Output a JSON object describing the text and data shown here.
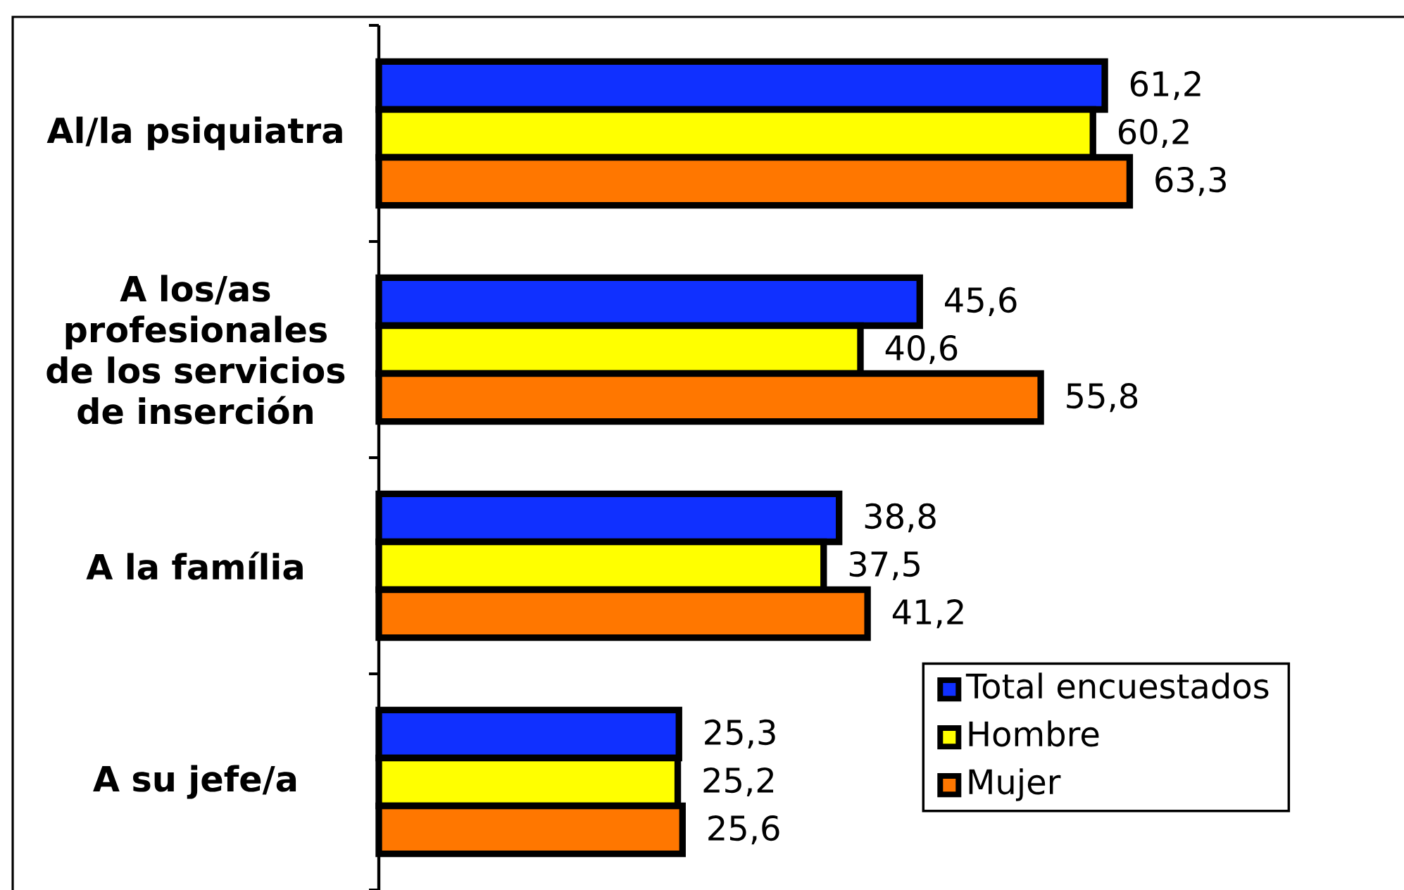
{
  "chart_data": {
    "type": "bar",
    "orientation": "horizontal",
    "categories": [
      "Al/la psiquiatra",
      "A los/as profesionales de los servicios de inserción",
      "A la família",
      "A su jefe/a"
    ],
    "series": [
      {
        "name": "Total encuestados",
        "color": "#1030ff",
        "values": [
          61.2,
          45.6,
          38.8,
          25.3
        ],
        "value_labels": [
          "61,2",
          "45,6",
          "38,8",
          "25,3"
        ]
      },
      {
        "name": "Hombre",
        "color": "#ffff00",
        "values": [
          60.2,
          40.6,
          37.5,
          25.2
        ],
        "value_labels": [
          "60,2",
          "40,6",
          "37,5",
          "25,2"
        ]
      },
      {
        "name": "Mujer",
        "color": "#ff7700",
        "values": [
          63.3,
          55.8,
          41.2,
          25.6
        ],
        "value_labels": [
          "63,3",
          "55,8",
          "41,2",
          "25,6"
        ]
      }
    ],
    "tick_labels": "y",
    "legend": "bottom right"
  }
}
